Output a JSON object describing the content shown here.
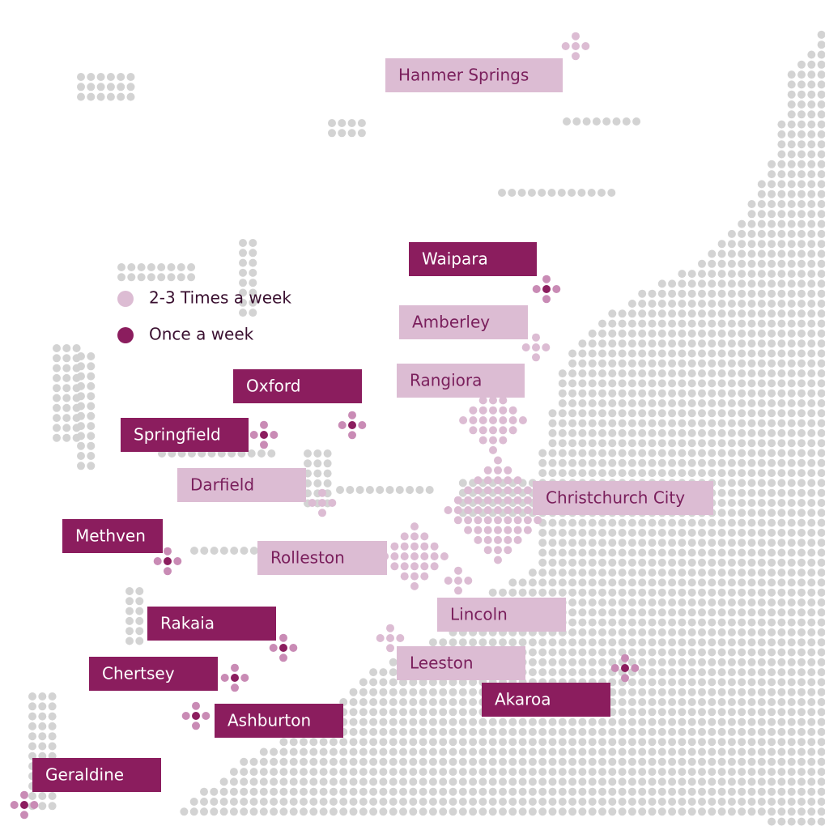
{
  "legend": [
    {
      "label": "2-3 Times a week",
      "places": [
        "Hanmer Springs",
        "Amberley",
        "Rangiora",
        "Darfield",
        "Christchurch City",
        "Rolleston",
        "Lincoln",
        "Leeston"
      ]
    },
    {
      "label": "Once a week",
      "places": [
        "Waipara",
        "Oxford",
        "Springfield",
        "Methven",
        "Rakaia",
        "Chertsey",
        "Akaroa",
        "Ashburton",
        "Geraldine"
      ]
    }
  ]
}
